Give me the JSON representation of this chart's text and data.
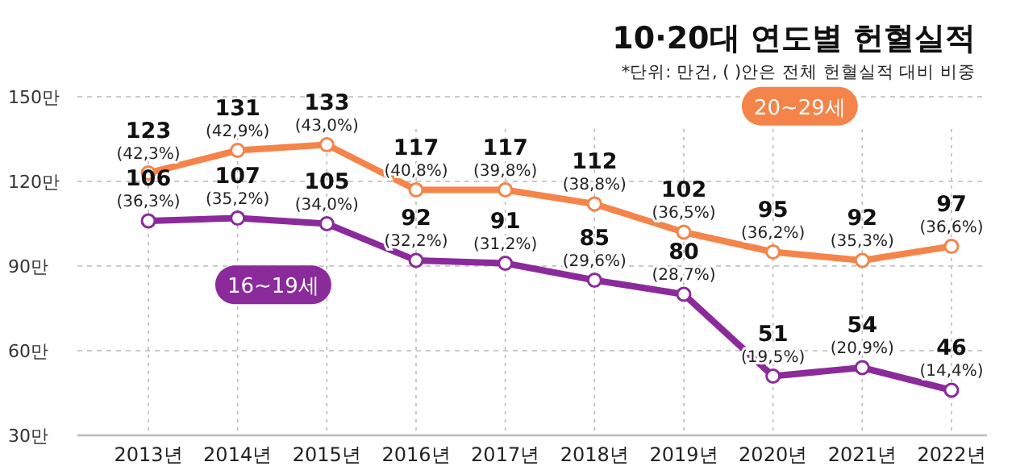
{
  "chart_data": {
    "type": "line",
    "title": "10·20대 연도별 헌혈실적",
    "annotations": [
      "*단위: 만건, ( )안은 전체 헌혈실적 대비 비중"
    ],
    "categories": [
      "2013년",
      "2014년",
      "2015년",
      "2016년",
      "2017년",
      "2018년",
      "2019년",
      "2020년",
      "2021년",
      "2022년"
    ],
    "ylim": [
      30,
      150
    ],
    "yticks": [
      {
        "value": 30,
        "label": "30만"
      },
      {
        "value": 60,
        "label": "60만"
      },
      {
        "value": 90,
        "label": "90만"
      },
      {
        "value": 120,
        "label": "120만"
      },
      {
        "value": 150,
        "label": "150만"
      }
    ],
    "grid": true,
    "marker": "circle",
    "line_style": "solid",
    "series": [
      {
        "name": "20~29세",
        "color": "#f5844a",
        "values": [
          123,
          131,
          133,
          117,
          117,
          112,
          102,
          95,
          92,
          97
        ],
        "value_labels": [
          "123 (42,3%)",
          "131 (42,9%)",
          "133 (43,0%)",
          "117 (40,8%)",
          "117 (39,8%)",
          "112 (38,8%)",
          "102 (36,5%)",
          "95 (36,2%)",
          "92 (35,3%)",
          "97 (36,6%)"
        ]
      },
      {
        "name": "16~19세",
        "color": "#8b2a9b",
        "values": [
          106,
          107,
          105,
          92,
          91,
          85,
          80,
          51,
          54,
          46
        ],
        "value_labels": [
          "106 (36,3%)",
          "107 (35,2%)",
          "105 (34,0%)",
          "92 (32,2%)",
          "91 (31,2%)",
          "85 (29,6%)",
          "80 (28,7%)",
          "51 (19,5%)",
          "54 (20,9%)",
          "46 (14,4%)"
        ]
      }
    ]
  }
}
